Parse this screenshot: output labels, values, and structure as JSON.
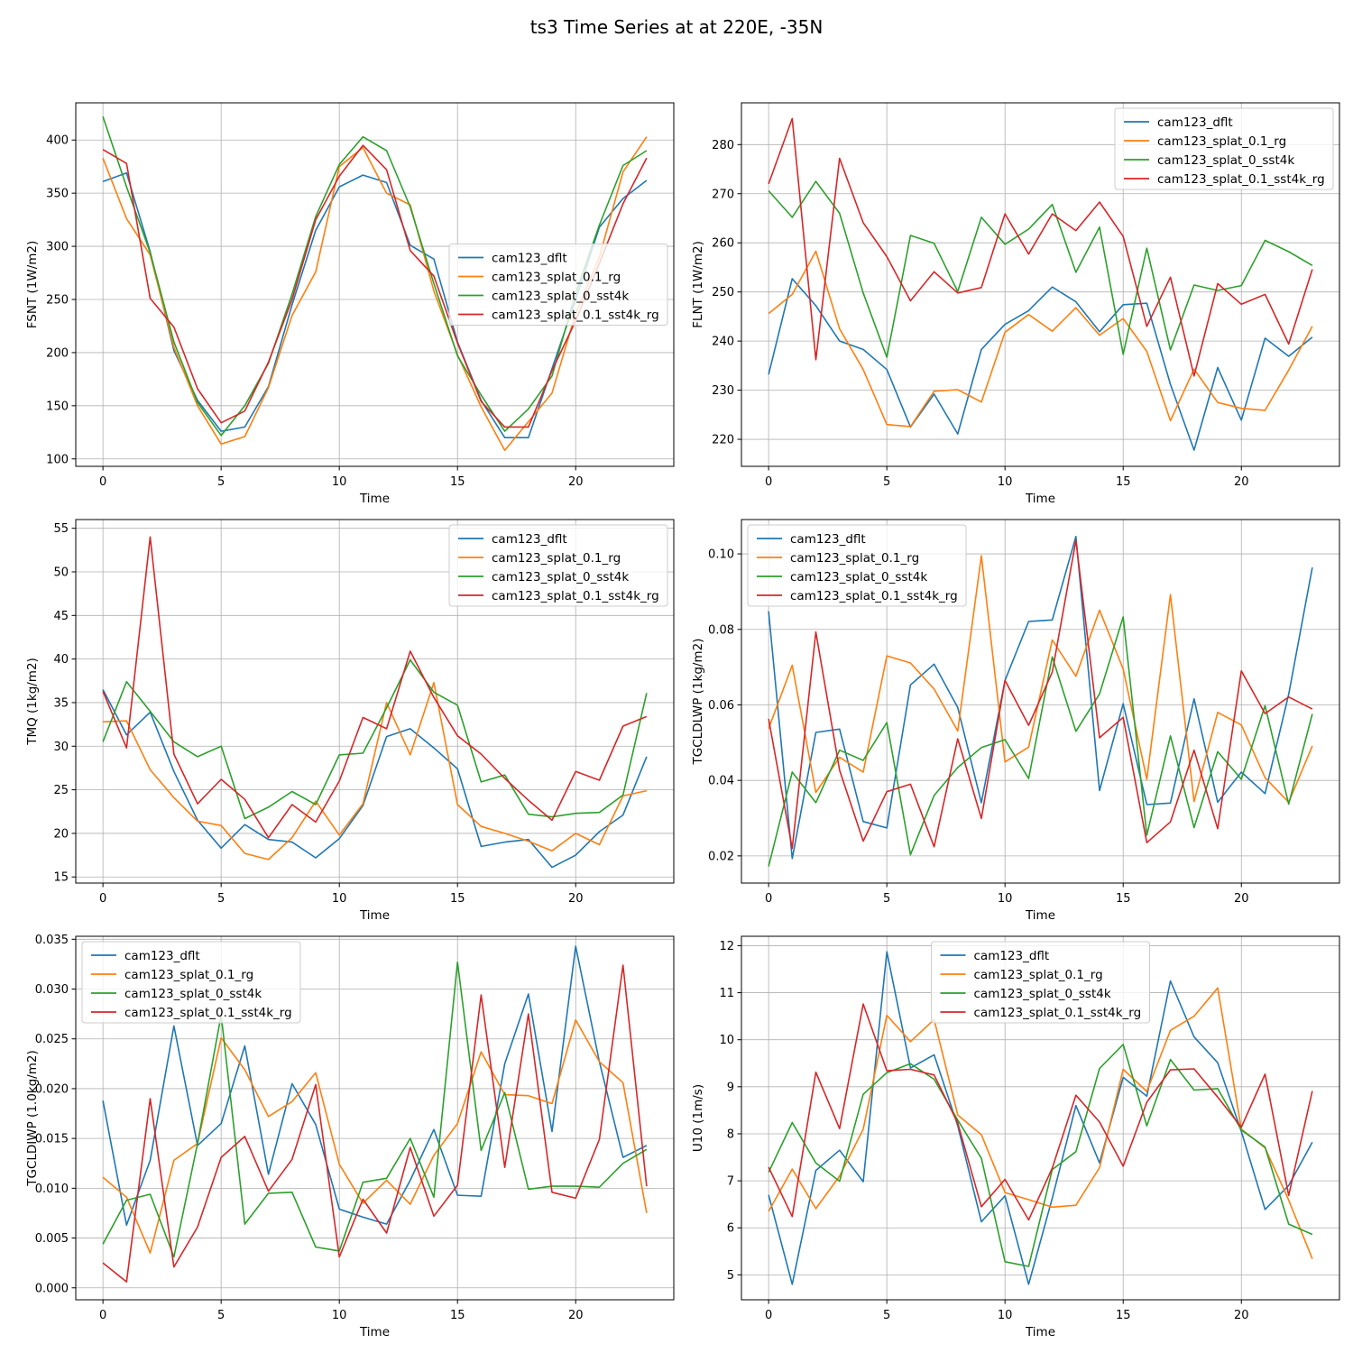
{
  "figure": {
    "title": "ts3 Time Series at at 220E, -35N"
  },
  "colors": [
    "#1f77b4",
    "#ff7f0e",
    "#2ca02c",
    "#d62728"
  ],
  "series_names": [
    "cam123_dflt",
    "cam123_splat_0.1_rg",
    "cam123_splat_0_sst4k",
    "cam123_splat_0.1_sst4k_rg"
  ],
  "chart_data": [
    {
      "type": "line",
      "xlabel": "Time",
      "ylabel": "FSNT (1W/m2)",
      "xlim": [
        -1.15,
        24.15
      ],
      "ylim": [
        93,
        435
      ],
      "xticks": [
        0,
        5,
        10,
        15,
        20
      ],
      "yticks": [
        100,
        150,
        200,
        250,
        300,
        350,
        400
      ],
      "ytick_labels": [
        "100",
        "150",
        "200",
        "250",
        "300",
        "350",
        "400"
      ],
      "legend": "center-right",
      "x": [
        0,
        1,
        2,
        3,
        4,
        5,
        6,
        7,
        8,
        9,
        10,
        11,
        12,
        13,
        14,
        15,
        16,
        17,
        18,
        19,
        20,
        21,
        22,
        23
      ],
      "series": [
        {
          "name": "cam123_dflt",
          "values": [
            361,
            369,
            295,
            202,
            155,
            126,
            130,
            168,
            245,
            315,
            356,
            367,
            360,
            301,
            288,
            210,
            155,
            120,
            120,
            185,
            250,
            318,
            345,
            362
          ]
        },
        {
          "name": "cam123_splat_0.1_rg",
          "values": [
            383,
            326,
            292,
            205,
            150,
            114,
            121,
            167,
            235,
            276,
            375,
            393,
            350,
            339,
            258,
            198,
            149,
            108,
            135,
            162,
            237,
            290,
            370,
            403
          ]
        },
        {
          "name": "cam123_splat_0_sst4k",
          "values": [
            422,
            356,
            294,
            210,
            153,
            122,
            150,
            190,
            255,
            328,
            377,
            403,
            390,
            337,
            265,
            197,
            160,
            126,
            147,
            178,
            256,
            320,
            376,
            390
          ]
        },
        {
          "name": "cam123_splat_0.1_sst4k_rg",
          "values": [
            391,
            378,
            251,
            224,
            166,
            134,
            145,
            191,
            250,
            325,
            366,
            395,
            372,
            296,
            272,
            209,
            154,
            130,
            130,
            183,
            230,
            284,
            340,
            383
          ]
        }
      ]
    },
    {
      "type": "line",
      "xlabel": "Time",
      "ylabel": "FLNT (1W/m2)",
      "xlim": [
        -1.15,
        24.15
      ],
      "ylim": [
        214.5,
        288.5
      ],
      "xticks": [
        0,
        5,
        10,
        15,
        20
      ],
      "yticks": [
        220,
        230,
        240,
        250,
        260,
        270,
        280
      ],
      "ytick_labels": [
        "220",
        "230",
        "240",
        "250",
        "260",
        "270",
        "280"
      ],
      "legend": "top-right",
      "x": [
        0,
        1,
        2,
        3,
        4,
        5,
        6,
        7,
        8,
        9,
        10,
        11,
        12,
        13,
        14,
        15,
        16,
        17,
        18,
        19,
        20,
        21,
        22,
        23
      ],
      "series": [
        {
          "name": "cam123_dflt",
          "values": [
            233.2,
            252.7,
            247.2,
            240,
            238.3,
            234.2,
            222.5,
            229.2,
            221.1,
            238.3,
            243.4,
            246.2,
            251,
            248,
            241.9,
            247.4,
            247.7,
            231.2,
            217.8,
            234.6,
            223.9,
            240.6,
            236.9,
            240.8
          ]
        },
        {
          "name": "cam123_splat_0.1_rg",
          "values": [
            245.6,
            249.5,
            258.3,
            242.5,
            234.2,
            223,
            222.6,
            229.8,
            230.1,
            227.6,
            241.8,
            245.4,
            242,
            246.8,
            241.2,
            244.6,
            237.9,
            223.8,
            234.3,
            227.5,
            226.3,
            225.9,
            234.1,
            243
          ]
        },
        {
          "name": "cam123_splat_0_sst4k",
          "values": [
            270.6,
            265.2,
            272.5,
            266,
            249.8,
            236.7,
            261.5,
            259.9,
            250.1,
            265.2,
            259.7,
            262.8,
            267.8,
            254,
            263.2,
            237.3,
            258.9,
            238.2,
            251.4,
            250.3,
            251.3,
            260.5,
            258.2,
            255.4
          ]
        },
        {
          "name": "cam123_splat_0.1_sst4k_rg",
          "values": [
            272,
            285.3,
            236.2,
            277.2,
            264.1,
            257.2,
            248.2,
            254.1,
            249.8,
            250.9,
            265.9,
            257.7,
            265.9,
            262.5,
            268.3,
            261.3,
            243,
            253,
            232.9,
            251.7,
            247.5,
            249.5,
            239.4,
            254.6
          ]
        }
      ]
    },
    {
      "type": "line",
      "xlabel": "Time",
      "ylabel": "TMQ (1kg/m2)",
      "xlim": [
        -1.15,
        24.15
      ],
      "ylim": [
        14.3,
        56.0
      ],
      "xticks": [
        0,
        5,
        10,
        15,
        20
      ],
      "yticks": [
        15,
        20,
        25,
        30,
        35,
        40,
        45,
        50,
        55
      ],
      "ytick_labels": [
        "15",
        "20",
        "25",
        "30",
        "35",
        "40",
        "45",
        "50",
        "55"
      ],
      "legend": "top-right",
      "x": [
        0,
        1,
        2,
        3,
        4,
        5,
        6,
        7,
        8,
        9,
        10,
        11,
        12,
        13,
        14,
        15,
        16,
        17,
        18,
        19,
        20,
        21,
        22,
        23
      ],
      "series": [
        {
          "name": "cam123_dflt",
          "values": [
            36.5,
            31.3,
            33.9,
            27.1,
            21.5,
            18.3,
            21,
            19.3,
            19,
            17.2,
            19.4,
            23.2,
            31.1,
            32,
            29.8,
            27.4,
            18.5,
            19,
            19.3,
            16.1,
            17.5,
            20.2,
            22.1,
            28.8
          ]
        },
        {
          "name": "cam123_splat_0.1_rg",
          "values": [
            32.8,
            32.9,
            27.3,
            24.1,
            21.4,
            20.9,
            17.7,
            17,
            19.5,
            23.7,
            19.8,
            23.4,
            35,
            29,
            37.3,
            23.3,
            20.8,
            20,
            19.1,
            18,
            20,
            18.7,
            24.3,
            24.9
          ]
        },
        {
          "name": "cam123_splat_0_sst4k",
          "values": [
            30.5,
            37.4,
            34,
            30.5,
            28.8,
            30,
            21.7,
            23,
            24.8,
            23.3,
            29,
            29.2,
            34.4,
            39.9,
            36.2,
            34.7,
            25.9,
            26.7,
            22.2,
            21.9,
            22.3,
            22.4,
            24.4,
            36.1
          ]
        },
        {
          "name": "cam123_splat_0.1_sst4k_rg",
          "values": [
            36.3,
            29.8,
            54,
            29.1,
            23.4,
            26.2,
            23.9,
            19.5,
            23.3,
            21.3,
            26,
            33.3,
            32,
            40.9,
            35.6,
            31.2,
            29.1,
            26.3,
            23.8,
            21.5,
            27.1,
            26.1,
            32.3,
            33.4
          ]
        }
      ]
    },
    {
      "type": "line",
      "xlabel": "Time",
      "ylabel": "TGCLDLWP (1kg/m2)",
      "xlim": [
        -1.15,
        24.15
      ],
      "ylim": [
        0.0128,
        0.1091
      ],
      "xticks": [
        0,
        5,
        10,
        15,
        20
      ],
      "yticks": [
        0.02,
        0.04,
        0.06,
        0.08,
        0.1
      ],
      "ytick_labels": [
        "0.02",
        "0.04",
        "0.06",
        "0.08",
        "0.10"
      ],
      "legend": "top-left",
      "x": [
        0,
        1,
        2,
        3,
        4,
        5,
        6,
        7,
        8,
        9,
        10,
        11,
        12,
        13,
        14,
        15,
        16,
        17,
        18,
        19,
        20,
        21,
        22,
        23
      ],
      "series": [
        {
          "name": "cam123_dflt",
          "values": [
            0.0848,
            0.0193,
            0.0527,
            0.0536,
            0.0291,
            0.0274,
            0.0653,
            0.0708,
            0.0593,
            0.0341,
            0.0665,
            0.0821,
            0.0825,
            0.1046,
            0.0373,
            0.0603,
            0.0336,
            0.034,
            0.0616,
            0.0342,
            0.0422,
            0.0365,
            0.0628,
            0.0964
          ]
        },
        {
          "name": "cam123_splat_0.1_rg",
          "values": [
            0.0537,
            0.0705,
            0.0368,
            0.0461,
            0.0422,
            0.073,
            0.0711,
            0.0642,
            0.0531,
            0.0995,
            0.0449,
            0.0488,
            0.0772,
            0.0676,
            0.0851,
            0.0695,
            0.0403,
            0.0892,
            0.0344,
            0.058,
            0.0547,
            0.0407,
            0.0342,
            0.0491
          ]
        },
        {
          "name": "cam123_splat_0_sst4k",
          "values": [
            0.0172,
            0.0422,
            0.0341,
            0.048,
            0.0453,
            0.0553,
            0.0203,
            0.036,
            0.0434,
            0.0487,
            0.0508,
            0.0405,
            0.0727,
            0.053,
            0.0629,
            0.0833,
            0.0255,
            0.0518,
            0.0275,
            0.0476,
            0.0403,
            0.0598,
            0.0337,
            0.0576
          ]
        },
        {
          "name": "cam123_splat_0.1_sst4k_rg",
          "values": [
            0.0563,
            0.022,
            0.0793,
            0.0427,
            0.0239,
            0.037,
            0.039,
            0.0224,
            0.051,
            0.0299,
            0.0665,
            0.0546,
            0.0687,
            0.1036,
            0.0513,
            0.0567,
            0.0235,
            0.029,
            0.048,
            0.0272,
            0.069,
            0.0577,
            0.0621,
            0.0589
          ]
        }
      ]
    },
    {
      "type": "line",
      "xlabel": "Time",
      "ylabel": "TGCLDIWP (1.0kg/m2)",
      "xlim": [
        -1.15,
        24.15
      ],
      "ylim": [
        -0.0012,
        0.0353
      ],
      "xticks": [
        0,
        5,
        10,
        15,
        20
      ],
      "yticks": [
        0,
        0.005,
        0.01,
        0.015,
        0.02,
        0.025,
        0.03,
        0.035
      ],
      "ytick_labels": [
        "0.000",
        "0.005",
        "0.010",
        "0.015",
        "0.020",
        "0.025",
        "0.030",
        "0.035"
      ],
      "legend": "top-left",
      "x": [
        0,
        1,
        2,
        3,
        4,
        5,
        6,
        7,
        8,
        9,
        10,
        11,
        12,
        13,
        14,
        15,
        16,
        17,
        18,
        19,
        20,
        21,
        22,
        23
      ],
      "series": [
        {
          "name": "cam123_dflt",
          "values": [
            0.0188,
            0.0063,
            0.0128,
            0.0263,
            0.0143,
            0.0165,
            0.0243,
            0.0114,
            0.0205,
            0.0164,
            0.0079,
            0.0071,
            0.0064,
            0.0108,
            0.0159,
            0.0093,
            0.0092,
            0.0225,
            0.0295,
            0.0157,
            0.0343,
            0.0227,
            0.0131,
            0.0143
          ]
        },
        {
          "name": "cam123_splat_0.1_rg",
          "values": [
            0.0111,
            0.0091,
            0.0035,
            0.0128,
            0.0145,
            0.0251,
            0.0219,
            0.0172,
            0.0187,
            0.0216,
            0.0124,
            0.0085,
            0.0108,
            0.0084,
            0.0133,
            0.0165,
            0.0237,
            0.0194,
            0.0193,
            0.0185,
            0.0269,
            0.0227,
            0.0206,
            0.0075
          ]
        },
        {
          "name": "cam123_splat_0_sst4k",
          "values": [
            0.0044,
            0.0088,
            0.0094,
            0.0031,
            0.0145,
            0.0274,
            0.0064,
            0.0095,
            0.0096,
            0.0041,
            0.0037,
            0.0106,
            0.011,
            0.015,
            0.0091,
            0.0327,
            0.0138,
            0.0196,
            0.0099,
            0.0102,
            0.0102,
            0.0101,
            0.0125,
            0.0139
          ]
        },
        {
          "name": "cam123_splat_0.1_sst4k_rg",
          "values": [
            0.0025,
            0.0006,
            0.019,
            0.0021,
            0.0061,
            0.0131,
            0.0152,
            0.0097,
            0.0129,
            0.0204,
            0.0031,
            0.0089,
            0.0055,
            0.0141,
            0.0072,
            0.0103,
            0.0294,
            0.0121,
            0.0275,
            0.0096,
            0.009,
            0.0149,
            0.0324,
            0.0102
          ]
        }
      ]
    },
    {
      "type": "line",
      "xlabel": "Time",
      "ylabel": "U10 (1m/s)",
      "xlim": [
        -1.15,
        24.15
      ],
      "ylim": [
        4.47,
        12.2
      ],
      "xticks": [
        0,
        5,
        10,
        15,
        20
      ],
      "yticks": [
        5,
        6,
        7,
        8,
        9,
        10,
        11,
        12
      ],
      "ytick_labels": [
        "5",
        "6",
        "7",
        "8",
        "9",
        "10",
        "11",
        "12"
      ],
      "legend": "top-center",
      "x": [
        0,
        1,
        2,
        3,
        4,
        5,
        6,
        7,
        8,
        9,
        10,
        11,
        12,
        13,
        14,
        15,
        16,
        17,
        18,
        19,
        20,
        21,
        22,
        23
      ],
      "series": [
        {
          "name": "cam123_dflt",
          "values": [
            6.7,
            4.8,
            7.22,
            7.65,
            6.98,
            11.87,
            9.4,
            9.68,
            8.17,
            6.13,
            6.68,
            4.8,
            6.63,
            8.6,
            7.38,
            9.2,
            8.8,
            11.25,
            10.06,
            9.51,
            8.05,
            6.39,
            6.9,
            7.82
          ]
        },
        {
          "name": "cam123_splat_0.1_rg",
          "values": [
            6.35,
            7.25,
            6.41,
            7.1,
            8.1,
            10.52,
            9.96,
            10.43,
            8.4,
            7.98,
            6.75,
            6.6,
            6.44,
            6.48,
            7.28,
            9.37,
            8.9,
            10.2,
            10.5,
            11.1,
            8.1,
            7.7,
            6.59,
            5.34
          ]
        },
        {
          "name": "cam123_splat_0_sst4k",
          "values": [
            7.18,
            8.24,
            7.38,
            6.99,
            8.84,
            9.3,
            9.49,
            9.16,
            8.29,
            7.48,
            5.28,
            5.18,
            7.24,
            7.62,
            9.39,
            9.9,
            8.17,
            9.58,
            8.93,
            8.96,
            8.08,
            7.72,
            6.08,
            5.86
          ]
        },
        {
          "name": "cam123_splat_0.1_sst4k_rg",
          "values": [
            7.29,
            6.24,
            9.31,
            8.11,
            10.76,
            9.34,
            9.37,
            9.25,
            8.23,
            6.45,
            7.03,
            6.17,
            7.27,
            8.82,
            8.25,
            7.31,
            8.67,
            9.36,
            9.38,
            8.78,
            8.14,
            9.27,
            6.69,
            8.91
          ]
        }
      ]
    }
  ]
}
